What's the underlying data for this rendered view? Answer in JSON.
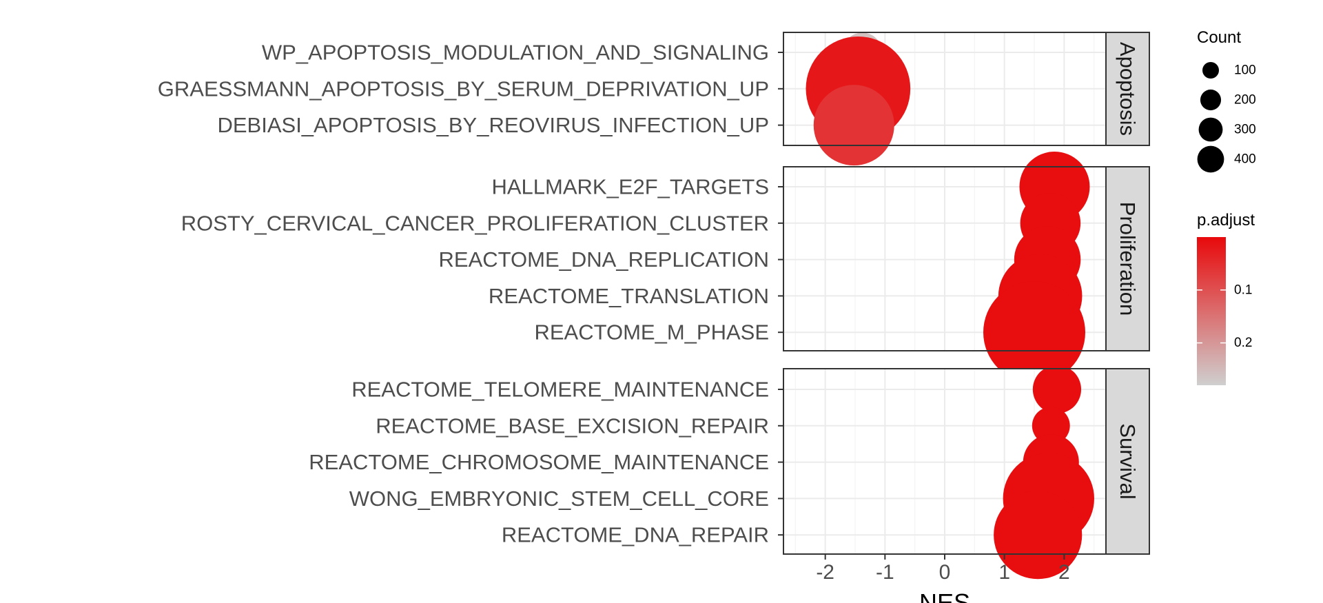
{
  "chart_data": {
    "type": "scatter",
    "subtype": "dotplot",
    "title": "",
    "xlabel": "NES",
    "ylabel": "",
    "xlim": [
      -2.7,
      2.7
    ],
    "x_ticks": [
      -2,
      -1,
      0,
      1,
      2
    ],
    "grid": true,
    "legend_position": "right",
    "panels": [
      {
        "name": "Apoptosis",
        "points": [
          {
            "term": "WP_APOPTOSIS_MODULATION_AND_SIGNALING",
            "nes": -1.38,
            "count": 60,
            "p_adjust": 0.26
          },
          {
            "term": "GRAESSMANN_APOPTOSIS_BY_SERUM_DEPRIVATION_UP",
            "nes": -1.45,
            "count": 420,
            "p_adjust": 0.02
          },
          {
            "term": "DEBIASI_APOPTOSIS_BY_REOVIRUS_INFECTION_UP",
            "nes": -1.52,
            "count": 250,
            "p_adjust": 0.06
          }
        ]
      },
      {
        "name": "Proliferation",
        "points": [
          {
            "term": "HALLMARK_E2F_TARGETS",
            "nes": 1.84,
            "count": 190,
            "p_adjust": 0.005
          },
          {
            "term": "ROSTY_CERVICAL_CANCER_PROLIFERATION_CLUSTER",
            "nes": 1.77,
            "count": 140,
            "p_adjust": 0.005
          },
          {
            "term": "REACTOME_DNA_REPLICATION",
            "nes": 1.72,
            "count": 170,
            "p_adjust": 0.005
          },
          {
            "term": "REACTOME_TRANSLATION",
            "nes": 1.6,
            "count": 270,
            "p_adjust": 0.005
          },
          {
            "term": "REACTOME_M_PHASE",
            "nes": 1.5,
            "count": 400,
            "p_adjust": 0.005
          }
        ]
      },
      {
        "name": "Survival",
        "points": [
          {
            "term": "REACTOME_TELOMERE_MAINTENANCE",
            "nes": 1.88,
            "count": 90,
            "p_adjust": 0.005
          },
          {
            "term": "REACTOME_BASE_EXCISION_REPAIR",
            "nes": 1.78,
            "count": 55,
            "p_adjust": 0.005
          },
          {
            "term": "REACTOME_CHROMOSOME_MAINTENANCE",
            "nes": 1.78,
            "count": 120,
            "p_adjust": 0.005
          },
          {
            "term": "WONG_EMBRYONIC_STEM_CELL_CORE",
            "nes": 1.74,
            "count": 320,
            "p_adjust": 0.005
          },
          {
            "term": "REACTOME_DNA_REPAIR",
            "nes": 1.56,
            "count": 300,
            "p_adjust": 0.005
          }
        ]
      }
    ],
    "legend": {
      "size_title": "Count",
      "size_breaks": [
        100,
        200,
        300,
        400
      ],
      "color_title": "p.adjust",
      "color_breaks": [
        0.1,
        0.2
      ],
      "color_range": [
        0.0,
        0.28
      ],
      "color_low": "#e8090b",
      "color_high": "#cfcfcf"
    }
  }
}
